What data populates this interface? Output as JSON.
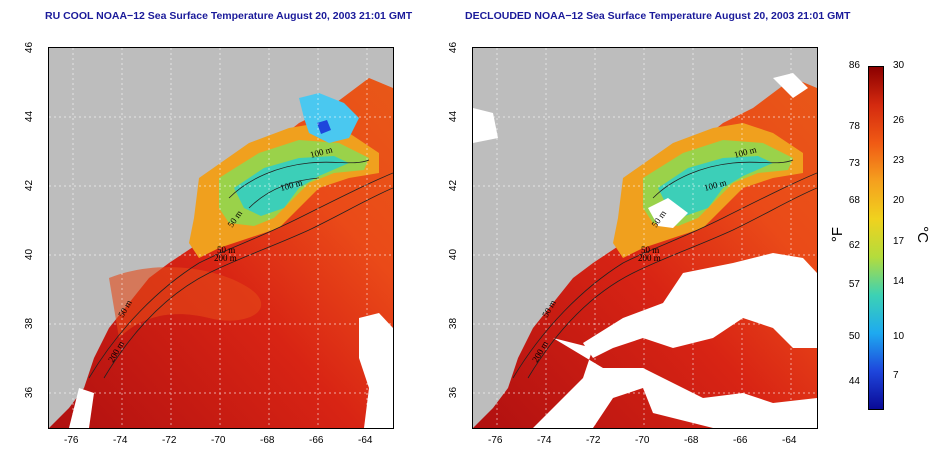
{
  "panels": [
    {
      "id": "left",
      "title": "RU COOL NOAA−12 Sea Surface Temperature August 20, 2003 21:01 GMT",
      "contour_labels": [
        "100 m",
        "100 m",
        "50 m",
        "50 m",
        "200 m",
        "50 m",
        "200 m"
      ],
      "cloud_masking": "partial"
    },
    {
      "id": "right",
      "title": "DECLOUDED NOAA−12 Sea Surface Temperature August 20, 2003 21:01 GMT",
      "contour_labels": [
        "100 m",
        "100 m",
        "50 m",
        "50 m",
        "200 m",
        "50 m",
        "200 m"
      ],
      "cloud_masking": "extensive"
    }
  ],
  "axes": {
    "x_ticks": [
      "-76",
      "-74",
      "-72",
      "-70",
      "-68",
      "-66",
      "-64"
    ],
    "y_ticks": [
      "46",
      "44",
      "42",
      "40",
      "38",
      "36"
    ],
    "lon_range": [
      -77,
      -63
    ],
    "lat_range": [
      35,
      46
    ]
  },
  "colorbar": {
    "fahrenheit_ticks": [
      "86",
      "78",
      "73",
      "68",
      "62",
      "57",
      "50",
      "44"
    ],
    "celsius_ticks": [
      "30",
      "26",
      "23",
      "20",
      "17",
      "14",
      "10",
      "7"
    ],
    "f_label": "°F",
    "c_label": "°C",
    "range_c": [
      5,
      30
    ],
    "colors": [
      "#8b0000",
      "#d42a0f",
      "#f05a14",
      "#f5a01e",
      "#f0d21e",
      "#b4dc3c",
      "#3cd2b4",
      "#1eaaf0",
      "#1e46dc",
      "#0a0a96"
    ]
  },
  "map_colors": {
    "land": "#bdbdbd",
    "cloud": "#ffffff",
    "gulf_stream": "#c41818",
    "slope_water": "#e8401a",
    "shelf_warm": "#f08a1e",
    "shelf_cool": "#2ad0c0",
    "gulf_maine": "#4ac8f0"
  }
}
